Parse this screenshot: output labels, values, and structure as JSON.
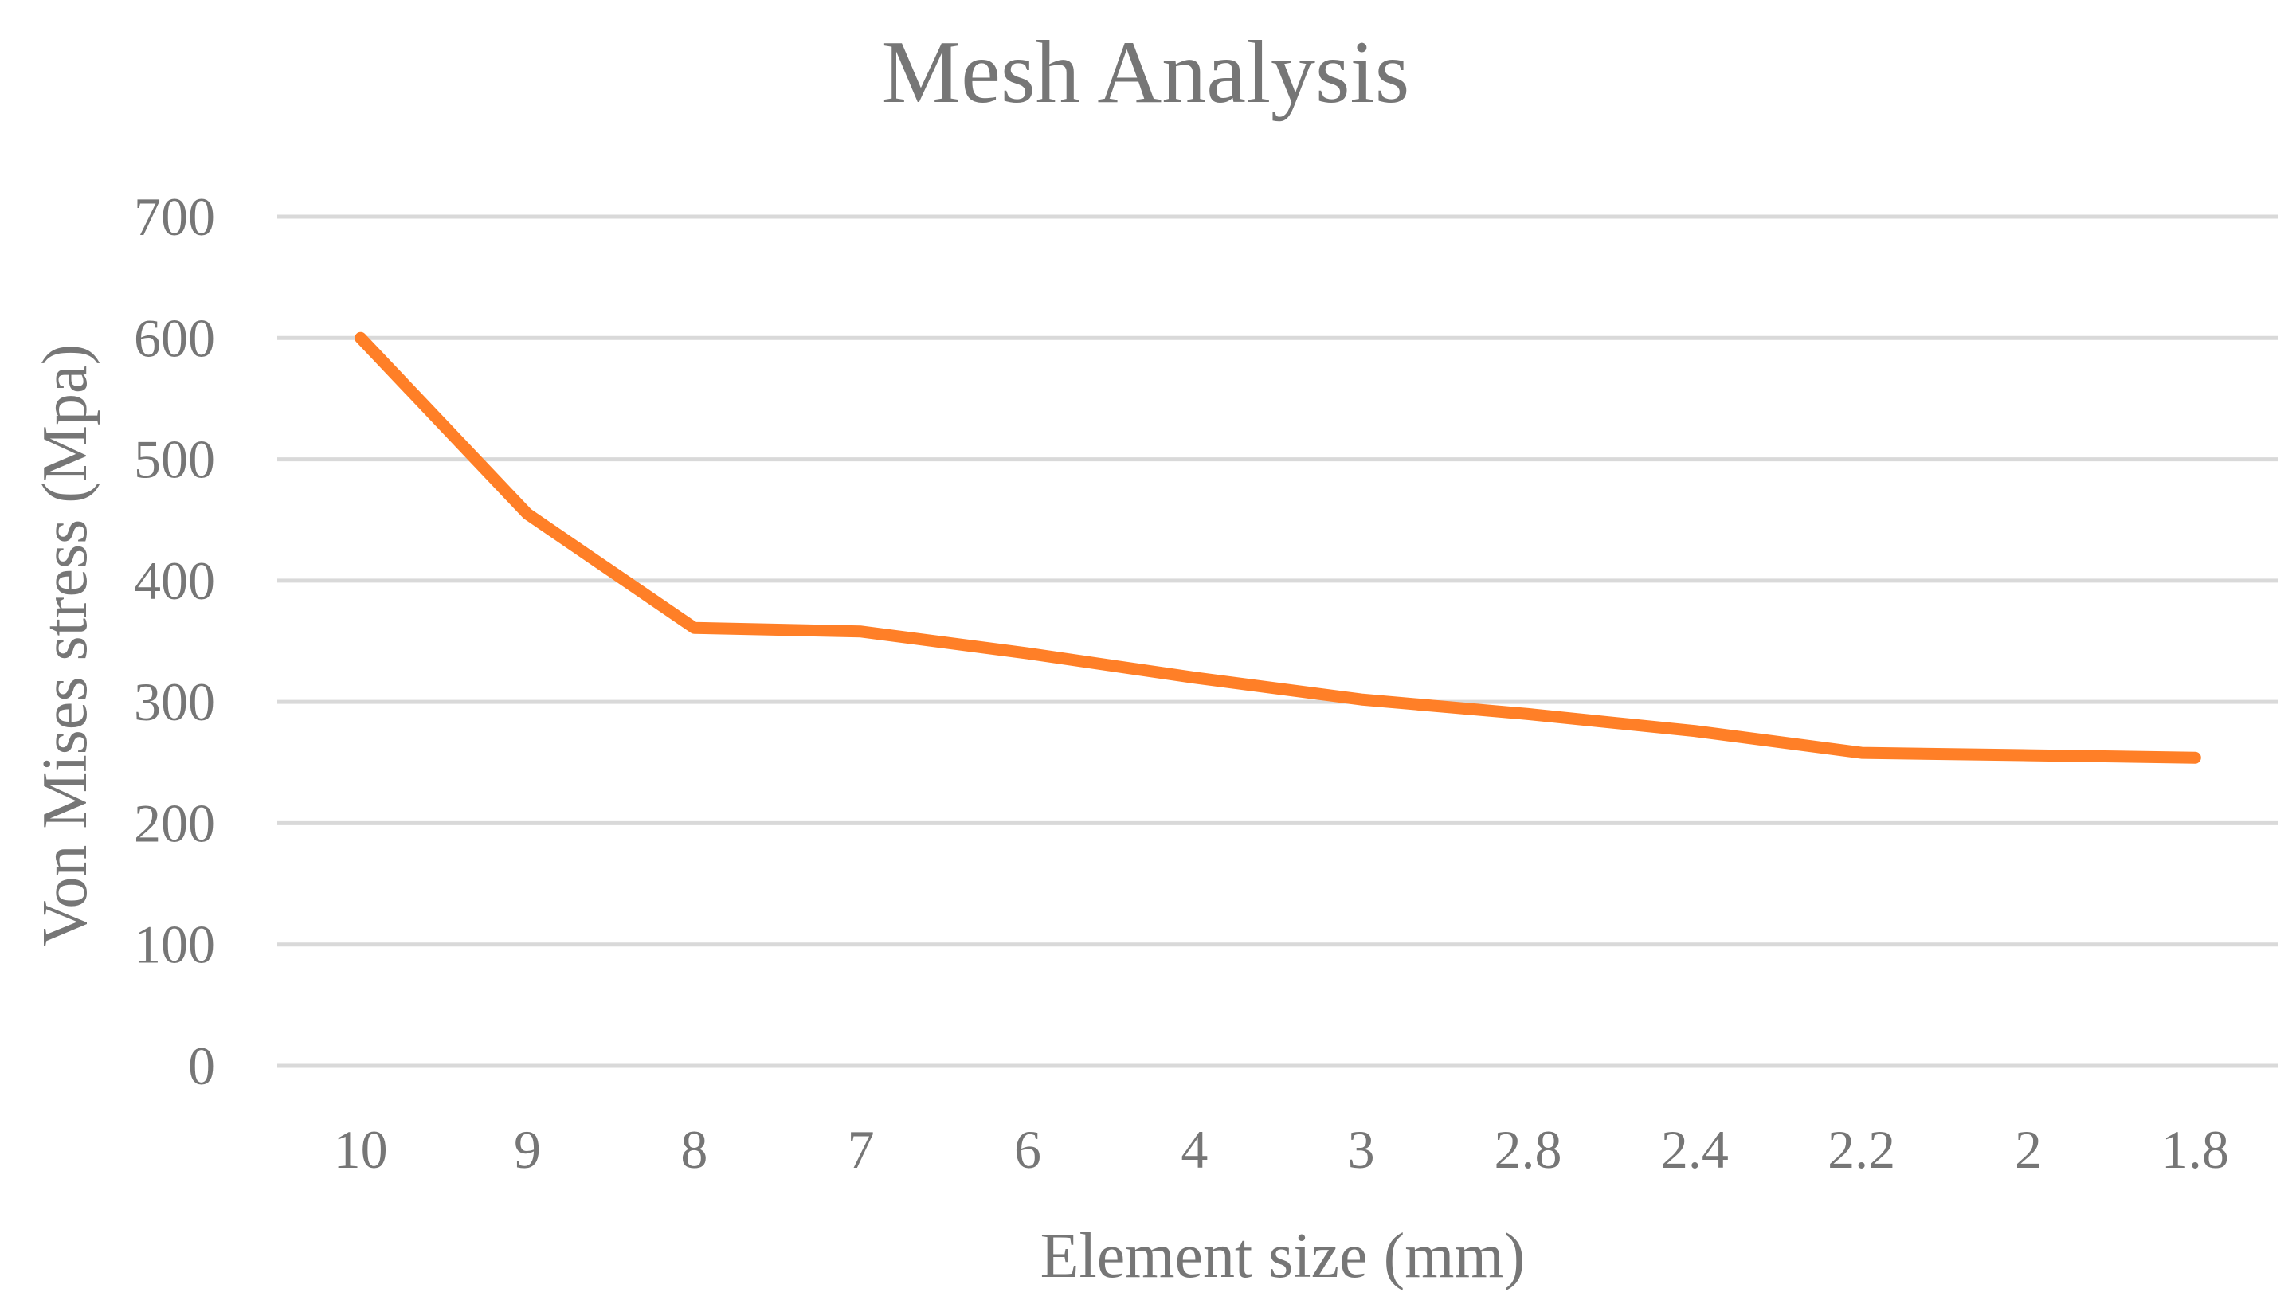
{
  "chart_data": {
    "type": "line",
    "title": "Mesh Analysis",
    "xlabel": "Element size (mm)",
    "ylabel": "Von Mises stress (Mpa)",
    "categories": [
      "10",
      "9",
      "8",
      "7",
      "6",
      "4",
      "3",
      "2.8",
      "2.4",
      "2.2",
      "2",
      "1.8"
    ],
    "series": [
      {
        "values": [
          600,
          455,
          361,
          358,
          340,
          320,
          302,
          290,
          276,
          258,
          256,
          254
        ],
        "color": "#FF7F27"
      }
    ],
    "ylim": [
      0,
      700
    ],
    "yticks": [
      0,
      100,
      200,
      300,
      400,
      500,
      600,
      700
    ],
    "grid": true,
    "legend": "none"
  }
}
